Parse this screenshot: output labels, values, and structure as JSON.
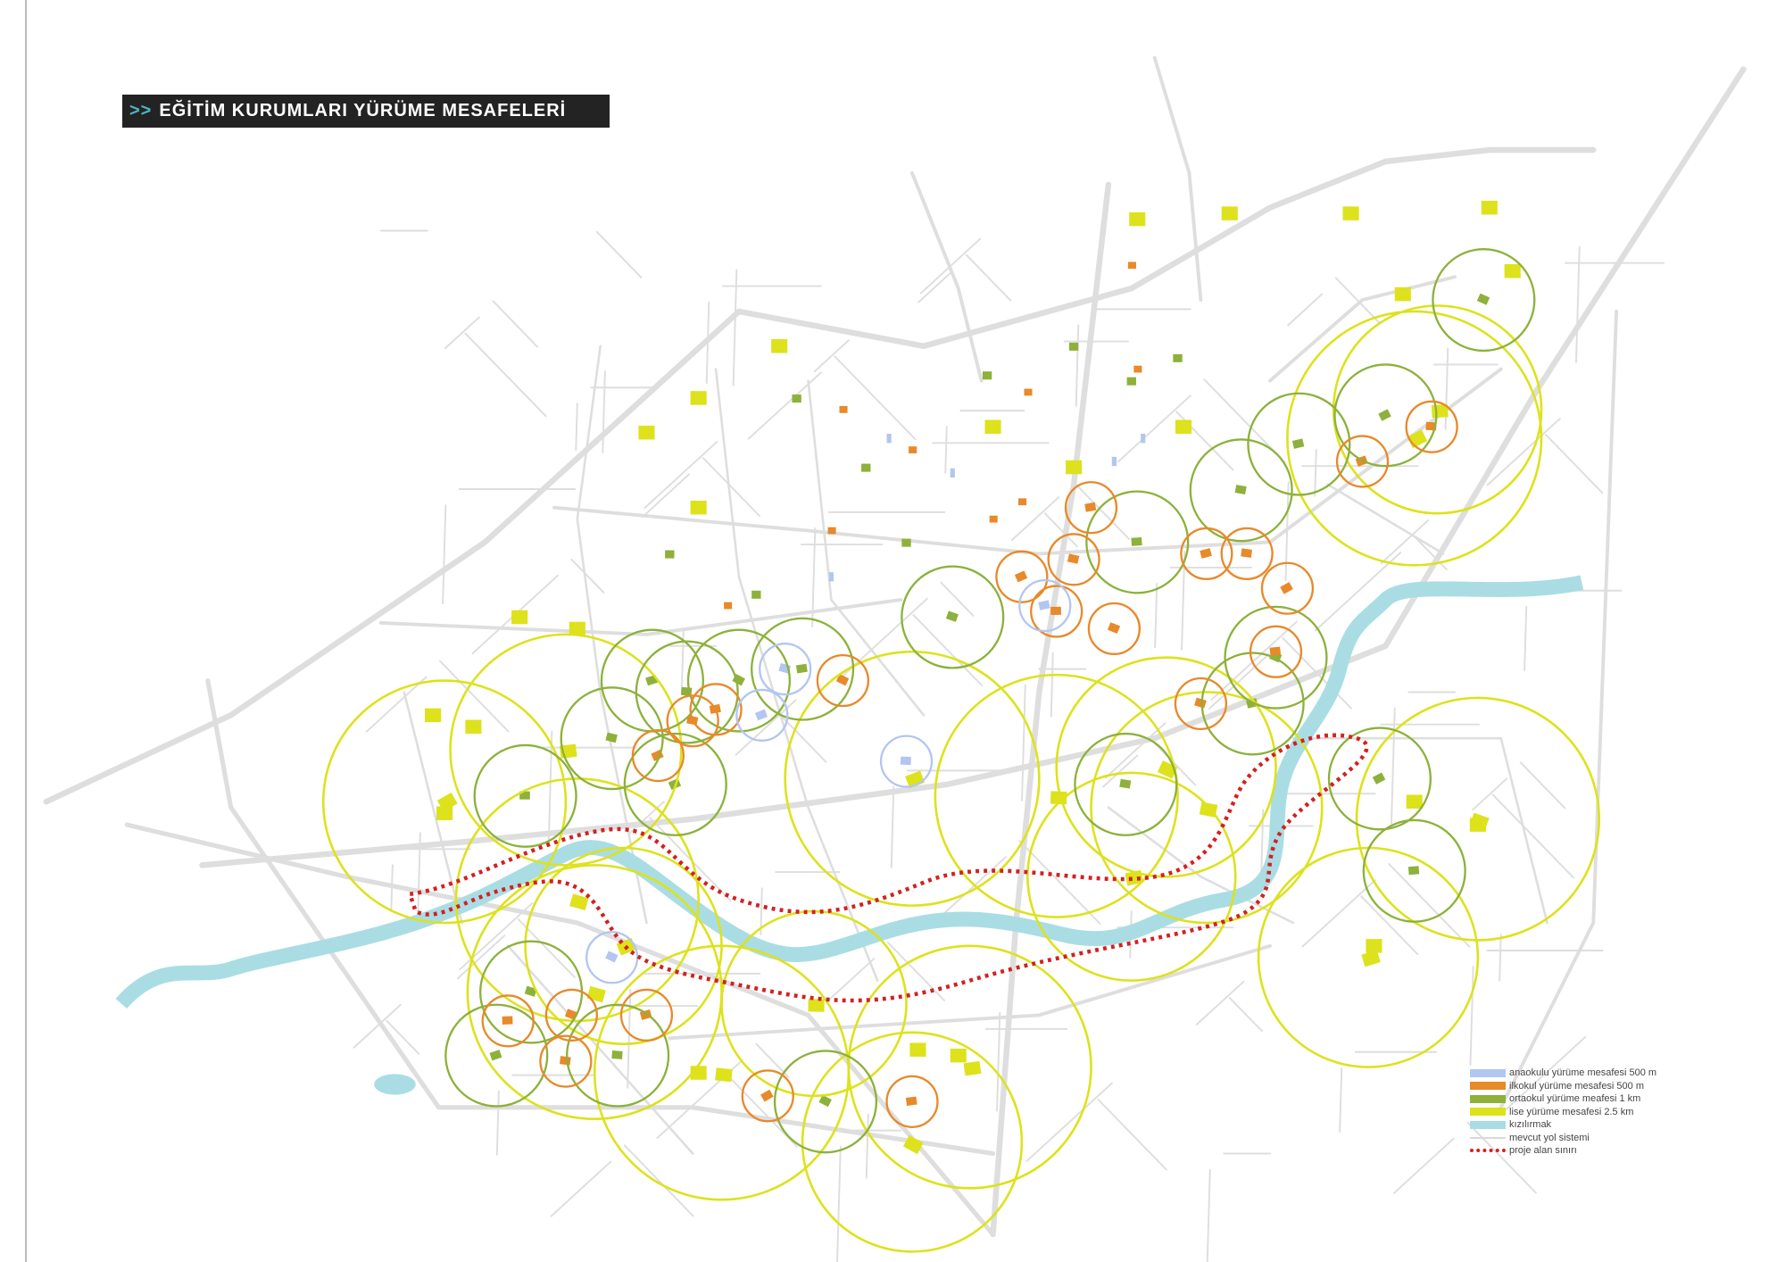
{
  "title": {
    "prefix": ">>",
    "text": "EĞİTİM KURUMLARI YÜRÜME MESAFELERİ"
  },
  "legend": [
    {
      "label": "anaokulu yürüme mesafesi 500 m",
      "color": "#b3c6f0",
      "style": "fill"
    },
    {
      "label": "ilkokul yürüme mesafesi 500 m",
      "color": "#e8892a",
      "style": "fill"
    },
    {
      "label": "ortaokul yürüme meafesi 1 km",
      "color": "#8db13b",
      "style": "fill"
    },
    {
      "label": "lise yürüme mesafesi 2.5 km",
      "color": "#dde21c",
      "style": "fill"
    },
    {
      "label": "kızılırmak",
      "color": "#a9dde3",
      "style": "fill"
    },
    {
      "label": "mevcut yol sistemi",
      "color": "#d9d9d9",
      "style": "line"
    },
    {
      "label": "proje alan sınırı",
      "color": "#d42020",
      "style": "dots"
    }
  ]
}
